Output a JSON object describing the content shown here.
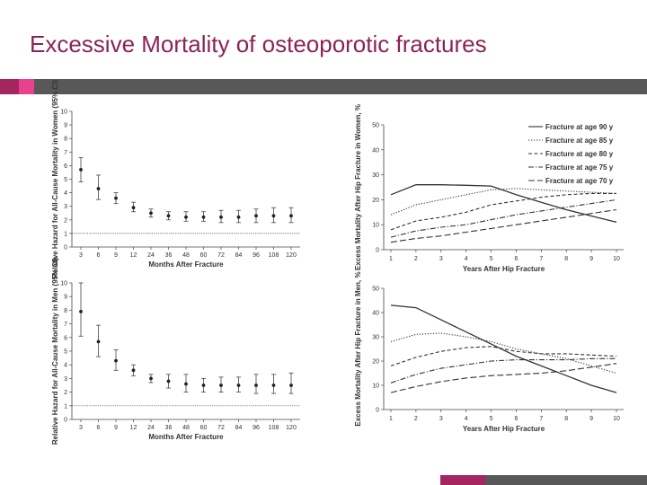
{
  "slide": {
    "title": "Excessive Mortality of osteoporotic fractures",
    "colors": {
      "title": "#8b2357",
      "accent_dark": "#a3265e",
      "accent_pink": "#e8418e",
      "bar_gray": "#585858"
    }
  },
  "chart_data": [
    {
      "type": "scatter",
      "error_bars": true,
      "ylabel": "Relative Hazard for All-Cause Mortality in Women (95% CI)",
      "xlabel": "Months After Fracture",
      "categories": [
        "3",
        "6",
        "9",
        "12",
        "24",
        "36",
        "48",
        "60",
        "72",
        "84",
        "96",
        "108",
        "120"
      ],
      "values": [
        5.7,
        4.3,
        3.6,
        2.9,
        2.5,
        2.3,
        2.2,
        2.2,
        2.2,
        2.2,
        2.3,
        2.3,
        2.3
      ],
      "lower": [
        4.8,
        3.5,
        3.2,
        2.6,
        2.2,
        2.0,
        1.9,
        1.9,
        1.8,
        1.8,
        1.8,
        1.8,
        1.8
      ],
      "upper": [
        6.6,
        5.3,
        4.0,
        3.3,
        2.8,
        2.6,
        2.6,
        2.6,
        2.7,
        2.7,
        2.8,
        2.9,
        2.9
      ],
      "reference_line": 1,
      "ylim": [
        0,
        10
      ],
      "yticks": [
        "0",
        "1",
        "2",
        "3",
        "4",
        "5",
        "6",
        "7",
        "8",
        "9",
        "10"
      ]
    },
    {
      "type": "line",
      "ylabel": "Excess Mortality After Hip Fracture in Women, %",
      "xlabel": "Years After Hip Fracture",
      "x": [
        1,
        2,
        3,
        4,
        5,
        6,
        7,
        8,
        9,
        10
      ],
      "ylim": [
        0,
        50
      ],
      "yticks": [
        "0",
        "10",
        "20",
        "30",
        "40",
        "50"
      ],
      "series": [
        {
          "name": "Fracture at age 90 y",
          "dash": "solid",
          "values": [
            22,
            26,
            26,
            25.8,
            25.5,
            22,
            19,
            16,
            13.5,
            11
          ]
        },
        {
          "name": "Fracture at age 85 y",
          "dash": "dotted",
          "values": [
            14,
            18,
            20,
            22,
            24,
            24.5,
            24,
            23.5,
            23,
            22.5
          ]
        },
        {
          "name": "Fracture at age 80 y",
          "dash": "dashed",
          "values": [
            8,
            11.5,
            13,
            15,
            18,
            19.5,
            21,
            22,
            22.5,
            22.5
          ]
        },
        {
          "name": "Fracture at age 75 y",
          "dash": "dashdot",
          "values": [
            5,
            7.5,
            9,
            10,
            12,
            14,
            15.5,
            17,
            18.5,
            20
          ]
        },
        {
          "name": "Fracture at age 70 y",
          "dash": "longdash",
          "values": [
            3,
            4.5,
            5.5,
            7,
            8.5,
            10,
            11.5,
            13,
            14.5,
            16
          ]
        }
      ],
      "legend": "top-right"
    },
    {
      "type": "scatter",
      "error_bars": true,
      "ylabel": "Relative Hazard for All-Cause Mortality in Men (95% CI)",
      "xlabel": "Months After Fracture",
      "categories": [
        "3",
        "6",
        "9",
        "12",
        "24",
        "36",
        "48",
        "60",
        "72",
        "84",
        "96",
        "108",
        "120"
      ],
      "values": [
        7.9,
        5.7,
        4.3,
        3.6,
        3.0,
        2.8,
        2.6,
        2.5,
        2.5,
        2.5,
        2.5,
        2.5,
        2.5
      ],
      "lower": [
        6.1,
        4.6,
        3.6,
        3.2,
        2.7,
        2.3,
        2.0,
        2.0,
        2.0,
        2.0,
        1.9,
        1.9,
        1.9
      ],
      "upper": [
        10.0,
        6.9,
        5.1,
        4.0,
        3.3,
        3.3,
        3.3,
        3.0,
        3.1,
        3.1,
        3.3,
        3.3,
        3.4
      ],
      "reference_line": 1,
      "ylim": [
        0,
        10
      ],
      "yticks": [
        "0",
        "1",
        "2",
        "3",
        "4",
        "5",
        "6",
        "7",
        "8",
        "9",
        "10"
      ]
    },
    {
      "type": "line",
      "ylabel": "Excess Mortality After Hip Fracture in Men, %",
      "xlabel": "Years After Hip Fracture",
      "x": [
        1,
        2,
        3,
        4,
        5,
        6,
        7,
        8,
        9,
        10
      ],
      "ylim": [
        0,
        50
      ],
      "yticks": [
        "0",
        "10",
        "20",
        "30",
        "40",
        "50"
      ],
      "series": [
        {
          "name": "Fracture at age 90 y",
          "dash": "solid",
          "values": [
            43,
            42,
            37,
            32,
            27,
            22,
            18,
            14,
            10,
            7
          ]
        },
        {
          "name": "Fracture at age 85 y",
          "dash": "dotted",
          "values": [
            28,
            31,
            31.5,
            30,
            28,
            25,
            23,
            21,
            18,
            15
          ]
        },
        {
          "name": "Fracture at age 80 y",
          "dash": "dashed",
          "values": [
            18,
            21.5,
            24,
            25.5,
            26,
            24,
            23,
            23,
            22.5,
            22
          ]
        },
        {
          "name": "Fracture at age 75 y",
          "dash": "dashdot",
          "values": [
            11,
            14.5,
            17,
            18.5,
            20,
            20.5,
            20.5,
            20.5,
            21,
            21
          ]
        },
        {
          "name": "Fracture at age 70 y",
          "dash": "longdash",
          "values": [
            7,
            9.5,
            11.5,
            13,
            14,
            14.5,
            15,
            16,
            17.5,
            19
          ]
        }
      ]
    }
  ]
}
